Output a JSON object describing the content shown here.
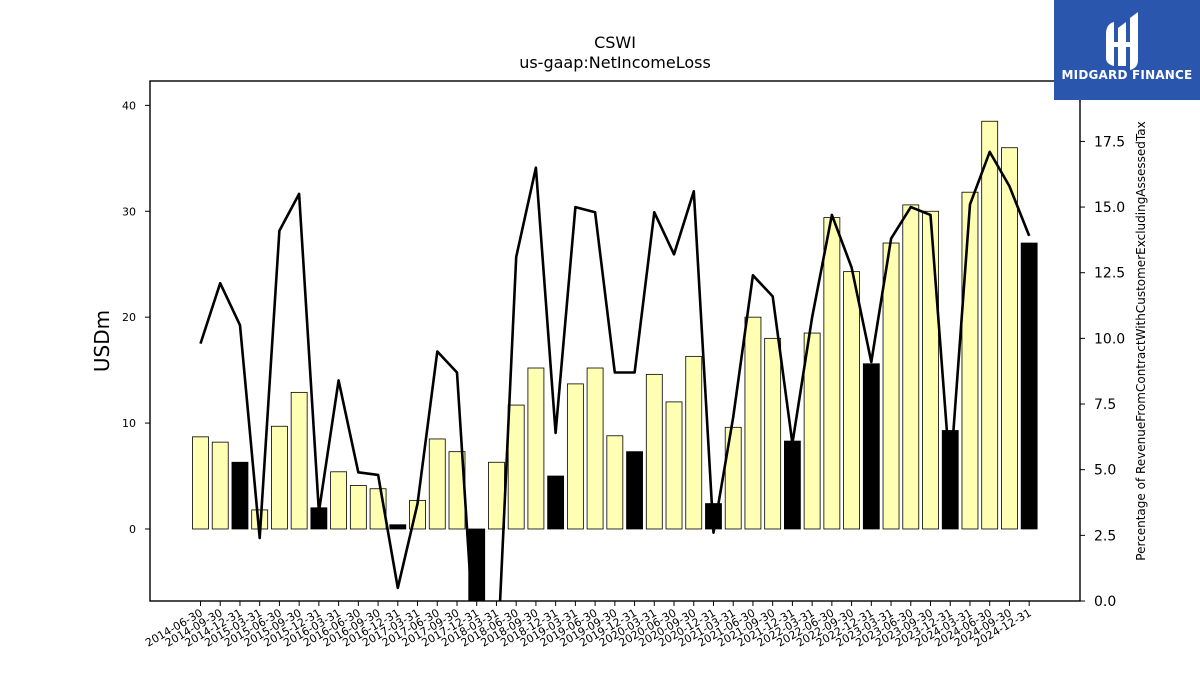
{
  "chart_data": {
    "type": "bar",
    "title": "CSWI",
    "subtitle": "us-gaap:NetIncomeLoss",
    "ylabel": "USDm",
    "y2label": "Percentage of RevenueFromContractWithCustomerExcludingAssessedTax",
    "ylim": [
      -6.8,
      42.3
    ],
    "y2lim": [
      0.0,
      19.8
    ],
    "yticks": [
      0,
      10,
      20,
      30,
      40
    ],
    "y2ticks": [
      0.0,
      2.5,
      5.0,
      7.5,
      10.0,
      12.5,
      15.0,
      17.5
    ],
    "categories": [
      "2014-06-30",
      "2014-09-30",
      "2014-12-31",
      "2015-03-31",
      "2015-06-30",
      "2015-09-30",
      "2015-12-31",
      "2016-03-31",
      "2016-06-30",
      "2016-09-30",
      "2016-12-31",
      "2017-03-31",
      "2017-06-30",
      "2017-09-30",
      "2017-12-31",
      "2018-03-31",
      "2018-06-30",
      "2018-09-30",
      "2018-12-31",
      "2019-03-31",
      "2019-06-30",
      "2019-09-30",
      "2019-12-31",
      "2020-03-31",
      "2020-06-30",
      "2020-09-30",
      "2020-12-31",
      "2021-03-31",
      "2021-06-30",
      "2021-09-30",
      "2021-12-31",
      "2022-03-31",
      "2022-06-30",
      "2022-09-30",
      "2022-12-31",
      "2023-03-31",
      "2023-06-30",
      "2023-09-30",
      "2023-12-31",
      "2024-03-31",
      "2024-06-30",
      "2024-09-30",
      "2024-12-31"
    ],
    "series": [
      {
        "kind": "bar",
        "values": [
          8.7,
          8.2,
          6.3,
          1.8,
          9.7,
          12.9,
          2.0,
          5.4,
          4.1,
          3.8,
          0.4,
          2.7,
          8.5,
          7.3,
          -10.0,
          6.3,
          11.7,
          15.2,
          5.0,
          13.7,
          15.2,
          8.8,
          7.3,
          14.6,
          12.0,
          16.3,
          2.4,
          9.6,
          20.0,
          18.0,
          8.3,
          18.5,
          29.4,
          24.3,
          15.6,
          27.0,
          30.6,
          30.0,
          9.3,
          31.8,
          38.5,
          36.0,
          27.0
        ],
        "highlight": [
          false,
          false,
          true,
          false,
          false,
          false,
          true,
          false,
          false,
          false,
          true,
          false,
          false,
          false,
          true,
          false,
          false,
          false,
          true,
          false,
          false,
          false,
          true,
          false,
          false,
          false,
          true,
          false,
          false,
          false,
          true,
          false,
          false,
          false,
          true,
          false,
          false,
          false,
          true,
          false,
          false,
          false,
          true
        ]
      },
      {
        "kind": "line",
        "axis": "right",
        "values": [
          9.8,
          12.1,
          10.5,
          2.4,
          14.1,
          15.5,
          3.4,
          8.4,
          4.9,
          4.8,
          0.5,
          3.7,
          9.5,
          8.7,
          -3.0,
          -3.0,
          13.1,
          16.5,
          6.4,
          15.0,
          14.8,
          8.7,
          8.7,
          14.8,
          13.2,
          15.6,
          2.6,
          7.0,
          12.4,
          11.6,
          6.0,
          10.8,
          14.7,
          12.7,
          9.1,
          13.8,
          15.0,
          14.7,
          4.8,
          15.1,
          17.1,
          15.8,
          13.9
        ]
      }
    ],
    "colors": {
      "bar": "#ffffb3",
      "highlight": "#000000",
      "line": "#000000"
    }
  },
  "logo": {
    "text": "MIDGARD FINANCE",
    "bg": "#2a56ae"
  }
}
